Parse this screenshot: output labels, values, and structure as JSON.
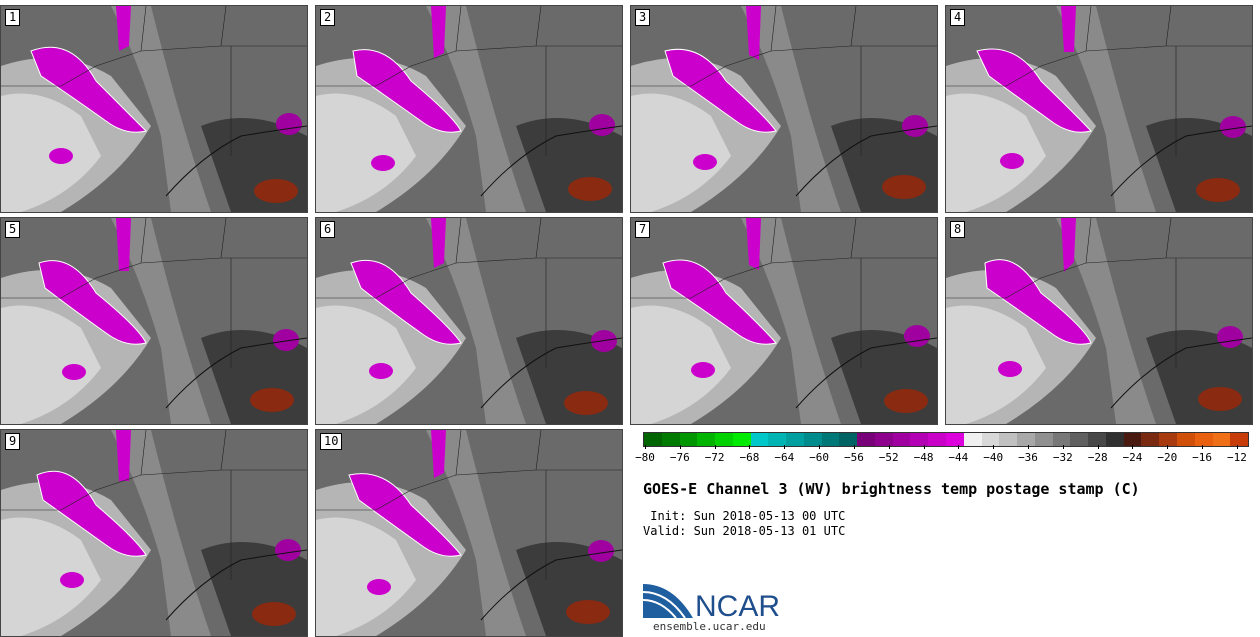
{
  "panels": [
    {
      "label": "1"
    },
    {
      "label": "2"
    },
    {
      "label": "3"
    },
    {
      "label": "4"
    },
    {
      "label": "5"
    },
    {
      "label": "6"
    },
    {
      "label": "7"
    },
    {
      "label": "8"
    },
    {
      "label": "9"
    },
    {
      "label": "10"
    }
  ],
  "colorbar": {
    "colors": [
      "#006400",
      "#007a00",
      "#009600",
      "#00b400",
      "#00d200",
      "#00eb00",
      "#00c8c8",
      "#00b4b4",
      "#00a0a0",
      "#008c8c",
      "#007878",
      "#006464",
      "#780078",
      "#8c008c",
      "#a000a0",
      "#b400b4",
      "#c800c8",
      "#dc00dc",
      "#f0f0f0",
      "#d8d8d8",
      "#c0c0c0",
      "#a8a8a8",
      "#909090",
      "#787878",
      "#606060",
      "#484848",
      "#303030",
      "#4a1a10",
      "#7a2a10",
      "#a83a10",
      "#d0500a",
      "#e86010",
      "#f07018",
      "#c83c0a"
    ],
    "tick_labels": [
      "-80",
      "-76",
      "-72",
      "-68",
      "-64",
      "-60",
      "-56",
      "-52",
      "-48",
      "-44",
      "-40",
      "-36",
      "-32",
      "-28",
      "-24",
      "-20",
      "-16",
      "-12"
    ]
  },
  "title": "GOES-E Channel 3 (WV) brightness temp postage stamp (C)",
  "init": " Init: Sun 2018-05-13 00 UTC",
  "valid": "Valid: Sun 2018-05-13 01 UTC",
  "logo_text": "NCAR",
  "url": "ensemble.ucar.edu"
}
